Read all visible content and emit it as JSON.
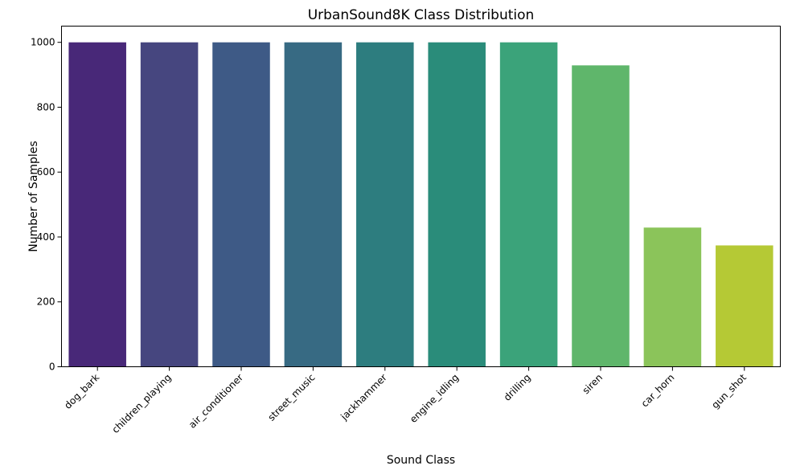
{
  "chart_data": {
    "type": "bar",
    "title": "UrbanSound8K Class Distribution",
    "xlabel": "Sound Class",
    "ylabel": "Number of Samples",
    "categories": [
      "dog_bark",
      "children_playing",
      "air_conditioner",
      "street_music",
      "jackhammer",
      "engine_idling",
      "drilling",
      "siren",
      "car_horn",
      "gun_shot"
    ],
    "values": [
      1000,
      1000,
      1000,
      1000,
      1000,
      1000,
      1000,
      929,
      429,
      374
    ],
    "ylim": [
      0,
      1050
    ],
    "yticks": [
      0,
      200,
      400,
      600,
      800,
      1000
    ],
    "colors": [
      "#482878",
      "#46467f",
      "#3e5a86",
      "#376a83",
      "#2d7d7f",
      "#2a8c7a",
      "#3ba37a",
      "#5fb66b",
      "#8bc45a",
      "#b5c935"
    ],
    "grid": false,
    "legend": "none"
  }
}
